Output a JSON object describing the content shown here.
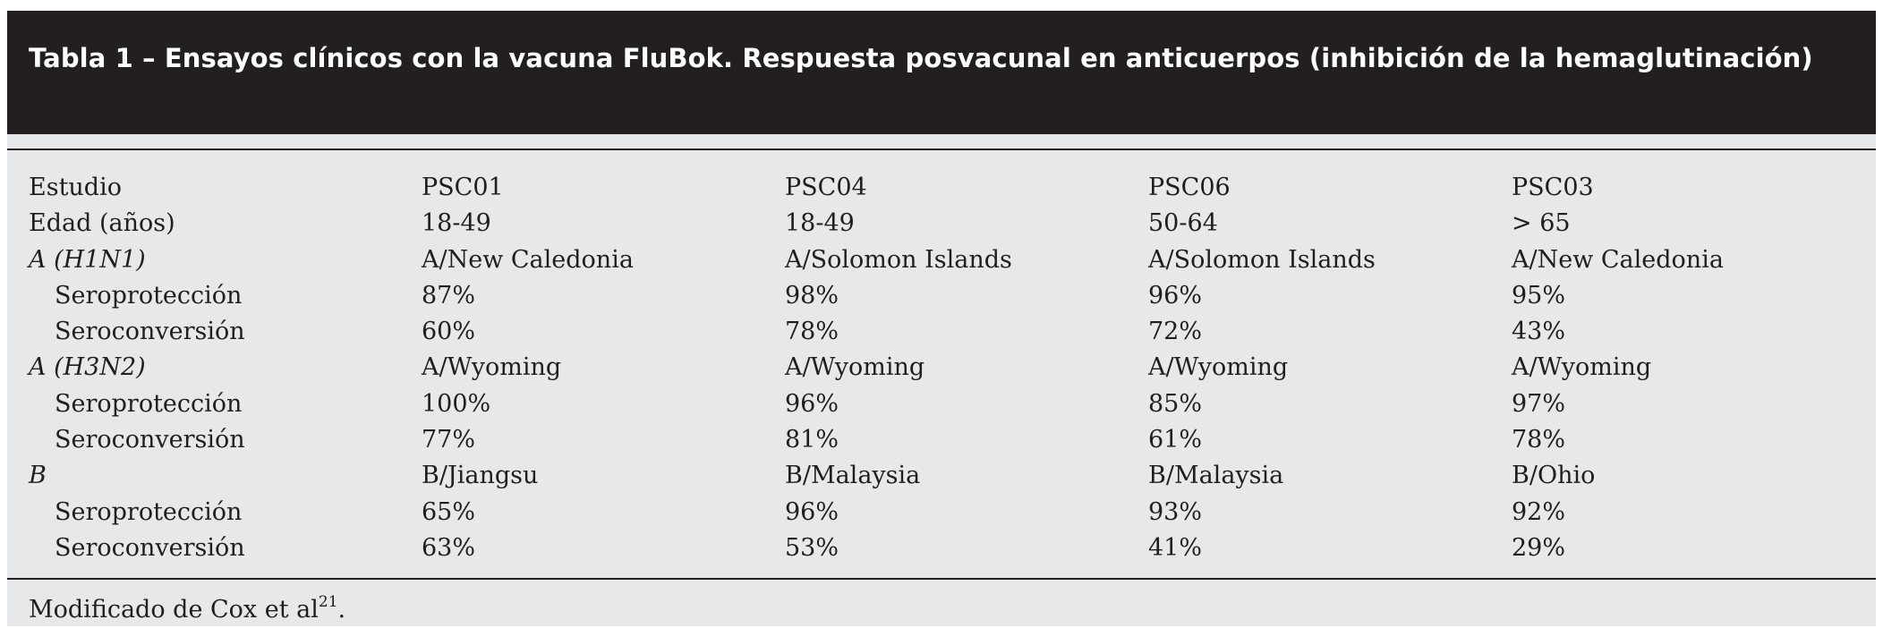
{
  "title": "Tabla 1 – Ensayos clínicos con la vacuna FluBok. Respuesta posvacunal en anticuerpos (inhibición de la hemaglutinación)",
  "rows": [
    {
      "label": "Estudio",
      "style": "normal",
      "values": [
        "PSC01",
        "PSC04",
        "PSC06",
        "PSC03"
      ]
    },
    {
      "label": "Edad (años)",
      "style": "normal",
      "values": [
        "18-49",
        "18-49",
        "50-64",
        "> 65"
      ]
    },
    {
      "label": "A (H1N1)",
      "style": "italic",
      "values": [
        "A/New Caledonia",
        "A/Solomon Islands",
        "A/Solomon Islands",
        "A/New Caledonia"
      ]
    },
    {
      "label": "Seroprotección",
      "style": "indent",
      "values": [
        "87%",
        "98%",
        "96%",
        "95%"
      ]
    },
    {
      "label": "Seroconversión",
      "style": "indent",
      "values": [
        "60%",
        "78%",
        "72%",
        "43%"
      ]
    },
    {
      "label": "A (H3N2)",
      "style": "italic",
      "values": [
        "A/Wyoming",
        "A/Wyoming",
        "A/Wyoming",
        "A/Wyoming"
      ]
    },
    {
      "label": "Seroprotección",
      "style": "indent",
      "values": [
        "100%",
        "96%",
        "85%",
        "97%"
      ]
    },
    {
      "label": "Seroconversión",
      "style": "indent",
      "values": [
        "77%",
        "81%",
        "61%",
        "78%"
      ]
    },
    {
      "label": "B",
      "style": "italic",
      "values": [
        "B/Jiangsu",
        "B/Malaysia",
        "B/Malaysia",
        "B/Ohio"
      ]
    },
    {
      "label": "Seroprotección",
      "style": "indent",
      "values": [
        "65%",
        "96%",
        "93%",
        "92%"
      ]
    },
    {
      "label": "Seroconversión",
      "style": "indent",
      "values": [
        "63%",
        "53%",
        "41%",
        "29%"
      ]
    }
  ],
  "footnote": {
    "text": "Modificado de Cox et al",
    "superscript": "21",
    "end": "."
  },
  "colors": {
    "title_background": "#231f20",
    "title_text": "#ffffff",
    "table_background": "#e7e8ea",
    "body_text": "#1f1f1f"
  }
}
